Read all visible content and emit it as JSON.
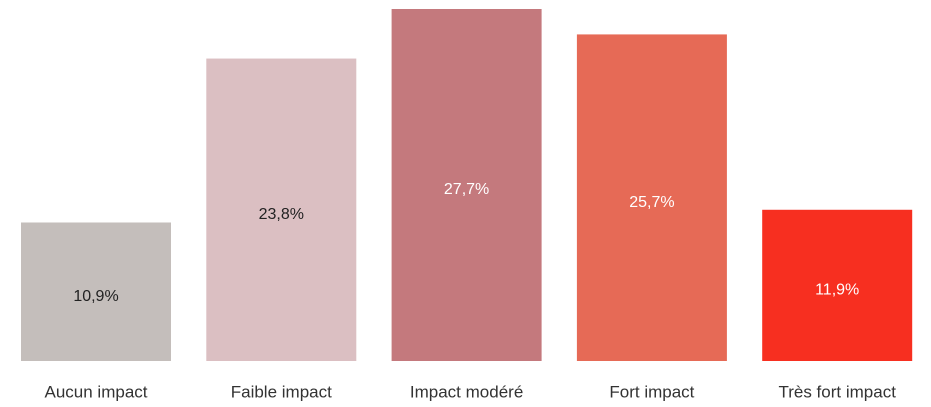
{
  "chart_data": {
    "type": "bar",
    "categories": [
      "Aucun impact",
      "Faible impact",
      "Impact modéré",
      "Fort impact",
      "Très fort impact"
    ],
    "values": [
      10.9,
      23.8,
      27.7,
      25.7,
      11.9
    ],
    "value_labels": [
      "10,9%",
      "23,8%",
      "27,7%",
      "25,7%",
      "11,9%"
    ],
    "colors": [
      "#c4bebb",
      "#dbbfc2",
      "#c4797d",
      "#e66a56",
      "#f72f20"
    ],
    "label_colors": [
      "#222222",
      "#222222",
      "#ffffff",
      "#ffffff",
      "#ffffff"
    ]
  }
}
